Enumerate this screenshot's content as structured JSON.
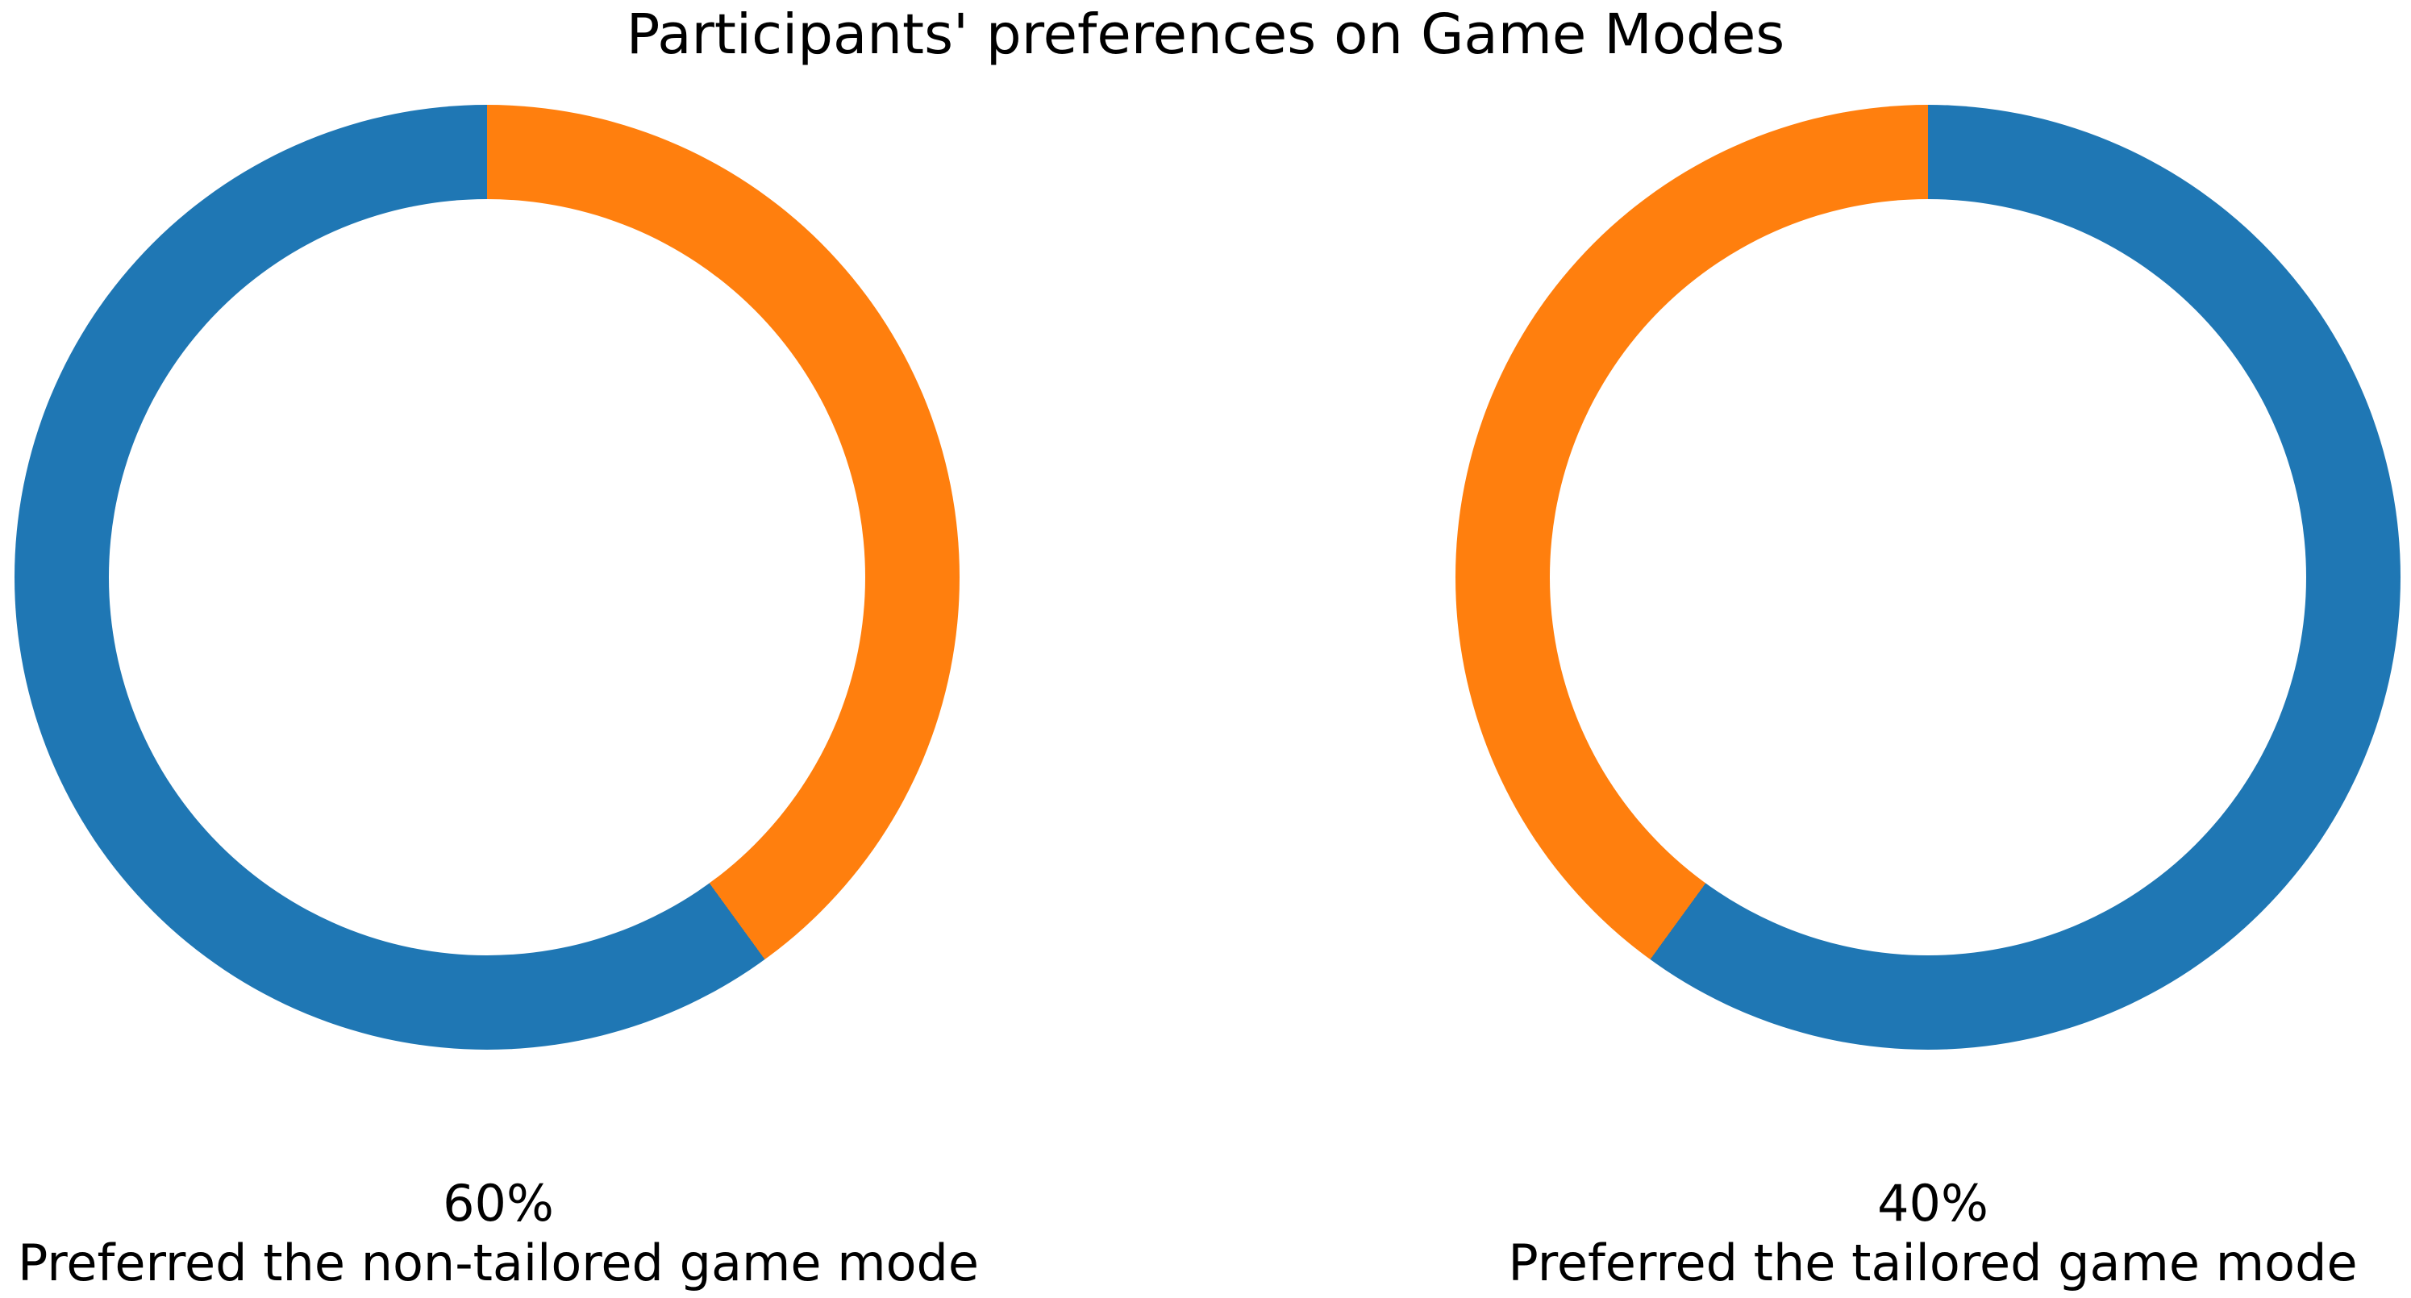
{
  "title": "Participants' preferences on Game Modes",
  "background_color": "#ffffff",
  "text_color": "#000000",
  "chart_data": [
    {
      "type": "pie",
      "subtype": "donut",
      "percent_text": "60%",
      "caption": "Preferred the non-tailored game mode",
      "slices": [
        {
          "value": 60,
          "color": "#1f77b4"
        },
        {
          "value": 40,
          "color": "#ff7f0e"
        }
      ],
      "start_angle_deg": 90,
      "direction": "counterclockwise",
      "donut_hole_ratio": 0.8,
      "legend": "none",
      "grid": false
    },
    {
      "type": "pie",
      "subtype": "donut",
      "percent_text": "40%",
      "caption": "Preferred the tailored game mode",
      "slices": [
        {
          "value": 60,
          "color": "#1f77b4"
        },
        {
          "value": 40,
          "color": "#ff7f0e"
        }
      ],
      "start_angle_deg": 90,
      "direction": "clockwise",
      "donut_hole_ratio": 0.8,
      "legend": "none",
      "grid": false
    }
  ]
}
